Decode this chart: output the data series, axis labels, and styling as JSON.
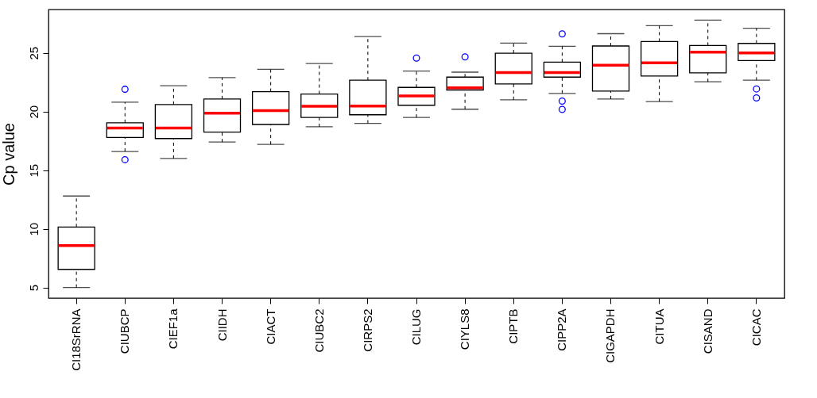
{
  "chart_data": {
    "type": "box",
    "ylabel": "Cp value",
    "categories": [
      "CI18SrRNA",
      "CIUBCP",
      "CIEF1a",
      "CIIDH",
      "CIACT",
      "CIUBC2",
      "CIRPS2",
      "CILUG",
      "CIYLS8",
      "CIPTB",
      "CIPP2A",
      "CIGAPDH",
      "CITUA",
      "CISAND",
      "CICAC"
    ],
    "ylim": [
      4.1,
      28.7
    ],
    "yticks": [
      5,
      10,
      15,
      20,
      25
    ],
    "grid": false,
    "series": [
      {
        "color": "#ff0000",
        "boxes": [
          {
            "low": 5.0,
            "q1": 6.55,
            "median": 8.57,
            "q3": 10.16,
            "high": 12.8
          },
          {
            "low": 16.6,
            "q1": 17.8,
            "median": 18.6,
            "q3": 19.05,
            "high": 20.8,
            "outliers": [
              21.9,
              15.9
            ]
          },
          {
            "low": 16.0,
            "q1": 17.7,
            "median": 18.6,
            "q3": 20.6,
            "high": 22.2
          },
          {
            "low": 17.4,
            "q1": 18.25,
            "median": 19.86,
            "q3": 21.07,
            "high": 22.9
          },
          {
            "low": 17.2,
            "q1": 18.9,
            "median": 20.08,
            "q3": 21.7,
            "high": 23.6
          },
          {
            "low": 18.7,
            "q1": 19.5,
            "median": 20.45,
            "q3": 21.5,
            "high": 24.1
          },
          {
            "low": 19.0,
            "q1": 19.73,
            "median": 20.47,
            "q3": 22.67,
            "high": 26.4
          },
          {
            "low": 19.5,
            "q1": 20.54,
            "median": 21.34,
            "q3": 22.06,
            "high": 23.45,
            "outliers": [
              24.56
            ]
          },
          {
            "low": 20.2,
            "q1": 21.84,
            "median": 22.02,
            "q3": 22.94,
            "high": 23.36,
            "outliers": [
              24.66
            ]
          },
          {
            "low": 21.0,
            "q1": 22.35,
            "median": 23.32,
            "q3": 24.98,
            "high": 25.83
          },
          {
            "low": 21.55,
            "q1": 22.94,
            "median": 23.32,
            "q3": 24.22,
            "high": 25.56,
            "outliers": [
              26.62,
              20.89,
              20.18
            ]
          },
          {
            "low": 21.07,
            "q1": 21.75,
            "median": 23.95,
            "q3": 25.59,
            "high": 26.64
          },
          {
            "low": 20.85,
            "q1": 23.03,
            "median": 24.15,
            "q3": 25.97,
            "high": 27.32
          },
          {
            "low": 22.54,
            "q1": 23.3,
            "median": 25.07,
            "q3": 25.63,
            "high": 27.79
          },
          {
            "low": 22.67,
            "q1": 24.35,
            "median": 25.0,
            "q3": 25.81,
            "high": 27.11,
            "outliers": [
              21.93,
              21.16
            ]
          }
        ]
      }
    ]
  }
}
